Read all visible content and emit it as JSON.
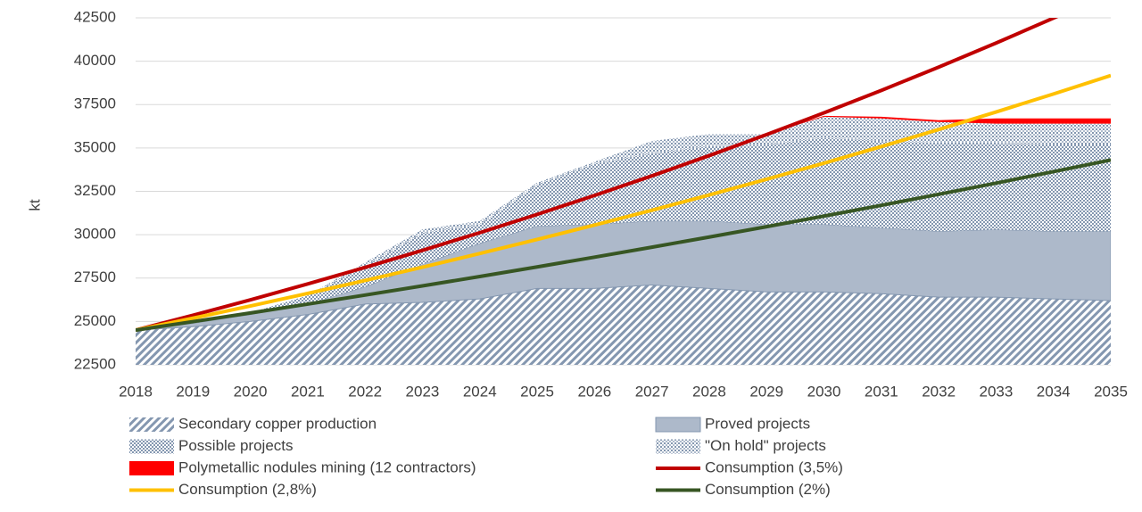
{
  "chart_data": {
    "type": "area",
    "ylabel": "kt",
    "categories": [
      "2018",
      "2019",
      "2020",
      "2021",
      "2022",
      "2023",
      "2024",
      "2025",
      "2026",
      "2027",
      "2028",
      "2029",
      "2030",
      "2031",
      "2032",
      "2033",
      "2034",
      "2035"
    ],
    "ylim": [
      22500,
      42500
    ],
    "yticks": [
      22500,
      25000,
      27500,
      30000,
      32500,
      35000,
      37500,
      40000,
      42500
    ],
    "series": [
      {
        "name": "Secondary copper production",
        "type": "area",
        "pattern": "hatch",
        "color": "#8497b0",
        "values": [
          24500,
          24700,
          25000,
          25400,
          26000,
          26100,
          26300,
          26900,
          26900,
          27100,
          26900,
          26700,
          26700,
          26600,
          26400,
          26400,
          26300,
          26200
        ]
      },
      {
        "name": "Proved projects",
        "type": "area",
        "pattern": "solid",
        "color": "#adb9ca",
        "values": [
          0,
          200,
          400,
          600,
          1000,
          2200,
          3200,
          3600,
          3700,
          3700,
          3900,
          3900,
          3900,
          3800,
          3800,
          3900,
          3900,
          4000
        ]
      },
      {
        "name": "Possible projects",
        "type": "area",
        "pattern": "dense",
        "color": "#8497b0",
        "values": [
          0,
          100,
          100,
          500,
          1200,
          1800,
          1100,
          2400,
          3500,
          3900,
          4300,
          4600,
          5000,
          5000,
          5100,
          5000,
          5000,
          5000
        ]
      },
      {
        "name": "\"On hold\" projects",
        "type": "area",
        "pattern": "dots",
        "color": "#8497b0",
        "values": [
          0,
          0,
          0,
          0,
          200,
          200,
          200,
          100,
          100,
          700,
          700,
          600,
          1200,
          1300,
          1200,
          1100,
          1200,
          1200
        ]
      },
      {
        "name": "Polymetallic nodules mining (12 contractors)",
        "type": "area",
        "pattern": "solid",
        "color": "#ff0000",
        "values": [
          0,
          0,
          0,
          0,
          0,
          0,
          0,
          0,
          0,
          0,
          0,
          0,
          50,
          100,
          100,
          300,
          300,
          300
        ]
      },
      {
        "name": "Consumption (3,5%)",
        "type": "line",
        "color": "#c00000",
        "values": [
          24500,
          25358,
          26245,
          27164,
          28115,
          29099,
          30117,
          31171,
          32262,
          33391,
          34560,
          35770,
          37022,
          38317,
          39658,
          41046,
          42483,
          43970
        ]
      },
      {
        "name": "Consumption (2,8%)",
        "type": "line",
        "color": "#ffc000",
        "values": [
          24500,
          25186,
          25891,
          26616,
          27361,
          28127,
          28915,
          29725,
          30557,
          31412,
          32292,
          33196,
          34125,
          35081,
          36063,
          37073,
          38111,
          39178
        ]
      },
      {
        "name": "Consumption (2%)",
        "type": "line",
        "color": "#375623",
        "values": [
          24500,
          24990,
          25490,
          26000,
          26520,
          27050,
          27591,
          28143,
          28706,
          29280,
          29866,
          30463,
          31072,
          31694,
          32328,
          32974,
          33634,
          34306
        ]
      }
    ],
    "grid": true
  }
}
